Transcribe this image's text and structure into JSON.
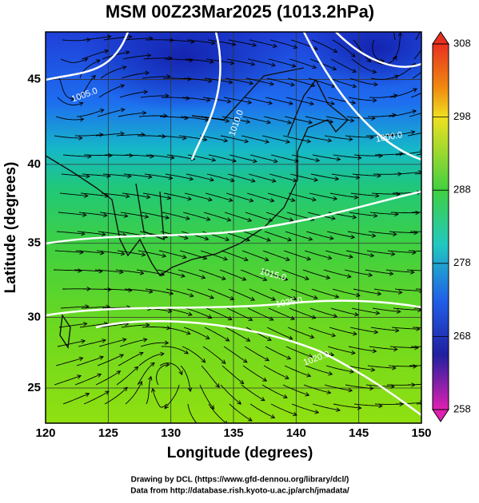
{
  "title": "MSM 00Z23Mar2025 (1013.2hPa)",
  "x_axis": {
    "label": "Longitude (degrees)",
    "ticks": [
      120,
      125,
      130,
      135,
      140,
      145,
      150
    ]
  },
  "y_axis": {
    "label": "Latitude (degrees)",
    "ticks": [
      25,
      30,
      35,
      40,
      45
    ]
  },
  "colorbar": {
    "ticks": [
      258,
      268,
      278,
      288,
      298,
      308
    ]
  },
  "contour_labels": [
    "1005.0",
    "1000.0",
    "1010.0",
    "1015.0",
    "1020.0",
    "1025.0"
  ],
  "credits": [
    "Drawing by DCL (https://www.gfd-dennou.org/library/dcl/)",
    "Data from http://database.rish.kyoto-u.ac.jp/arch/jmadata/"
  ]
}
